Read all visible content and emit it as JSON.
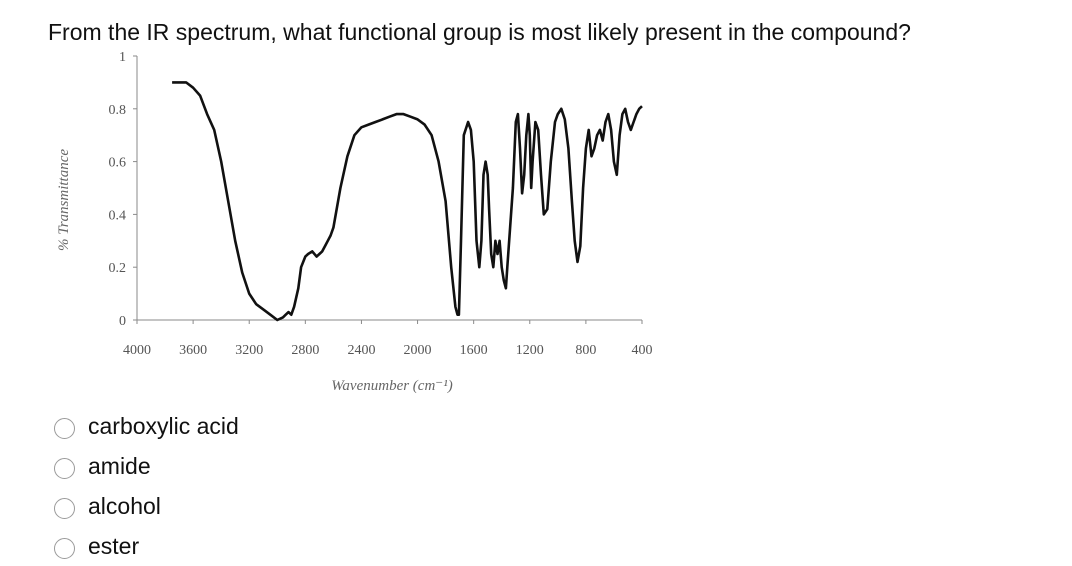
{
  "question": {
    "text": "From the IR spectrum, what functional group is most likely present in the compound?"
  },
  "chart_data": {
    "type": "line",
    "xlabel": "Wavenumber (cm⁻¹)",
    "ylabel": "% Transmittance",
    "xlim": [
      4000,
      400
    ],
    "ylim": [
      0,
      1
    ],
    "x_ticks": [
      "4000",
      "3600",
      "3200",
      "2800",
      "2400",
      "2000",
      "1600",
      "1200",
      "800",
      "400"
    ],
    "y_ticks": [
      "0",
      "0.2",
      "0.4",
      "0.6",
      "0.8",
      "1"
    ],
    "grid": false,
    "series": [
      {
        "x": [
          3750,
          3650,
          3600,
          3550,
          3500,
          3450,
          3400,
          3350,
          3300,
          3250,
          3200,
          3150,
          3100,
          3050,
          3000,
          2960,
          2940,
          2920,
          2900,
          2880,
          2850,
          2830,
          2800,
          2780,
          2750,
          2720,
          2700,
          2680,
          2660,
          2640,
          2620,
          2600,
          2550,
          2500,
          2450,
          2400,
          2350,
          2300,
          2250,
          2200,
          2150,
          2100,
          2050,
          2000,
          1950,
          1900,
          1850,
          1800,
          1760,
          1730,
          1715,
          1705,
          1690,
          1670,
          1640,
          1620,
          1600,
          1580,
          1560,
          1545,
          1530,
          1515,
          1500,
          1490,
          1475,
          1460,
          1445,
          1430,
          1415,
          1400,
          1385,
          1370,
          1360,
          1340,
          1320,
          1300,
          1285,
          1270,
          1255,
          1240,
          1225,
          1210,
          1200,
          1190,
          1180,
          1160,
          1140,
          1120,
          1100,
          1075,
          1050,
          1020,
          1000,
          975,
          950,
          925,
          900,
          880,
          860,
          840,
          820,
          800,
          780,
          760,
          740,
          720,
          700,
          680,
          660,
          640,
          620,
          600,
          580,
          560,
          540,
          520,
          500,
          480,
          460,
          440,
          420,
          400
        ],
        "y": [
          0.9,
          0.9,
          0.88,
          0.85,
          0.78,
          0.72,
          0.6,
          0.45,
          0.3,
          0.18,
          0.1,
          0.06,
          0.04,
          0.02,
          0.0,
          0.01,
          0.02,
          0.03,
          0.02,
          0.05,
          0.12,
          0.2,
          0.24,
          0.25,
          0.26,
          0.24,
          0.25,
          0.26,
          0.28,
          0.3,
          0.32,
          0.35,
          0.5,
          0.62,
          0.7,
          0.73,
          0.74,
          0.75,
          0.76,
          0.77,
          0.78,
          0.78,
          0.77,
          0.76,
          0.74,
          0.7,
          0.6,
          0.45,
          0.2,
          0.05,
          0.02,
          0.02,
          0.3,
          0.7,
          0.75,
          0.72,
          0.6,
          0.3,
          0.2,
          0.3,
          0.55,
          0.6,
          0.55,
          0.42,
          0.25,
          0.2,
          0.3,
          0.25,
          0.3,
          0.2,
          0.15,
          0.12,
          0.2,
          0.35,
          0.5,
          0.75,
          0.78,
          0.65,
          0.48,
          0.55,
          0.7,
          0.78,
          0.7,
          0.5,
          0.6,
          0.75,
          0.72,
          0.55,
          0.4,
          0.42,
          0.6,
          0.75,
          0.78,
          0.8,
          0.76,
          0.65,
          0.45,
          0.3,
          0.22,
          0.28,
          0.5,
          0.65,
          0.72,
          0.62,
          0.65,
          0.7,
          0.72,
          0.68,
          0.75,
          0.78,
          0.72,
          0.6,
          0.55,
          0.7,
          0.78,
          0.8,
          0.75,
          0.72,
          0.75,
          0.78,
          0.8,
          0.81
        ]
      }
    ]
  },
  "options": [
    {
      "label": "carboxylic acid"
    },
    {
      "label": "amide"
    },
    {
      "label": "alcohol"
    },
    {
      "label": "ester"
    }
  ]
}
